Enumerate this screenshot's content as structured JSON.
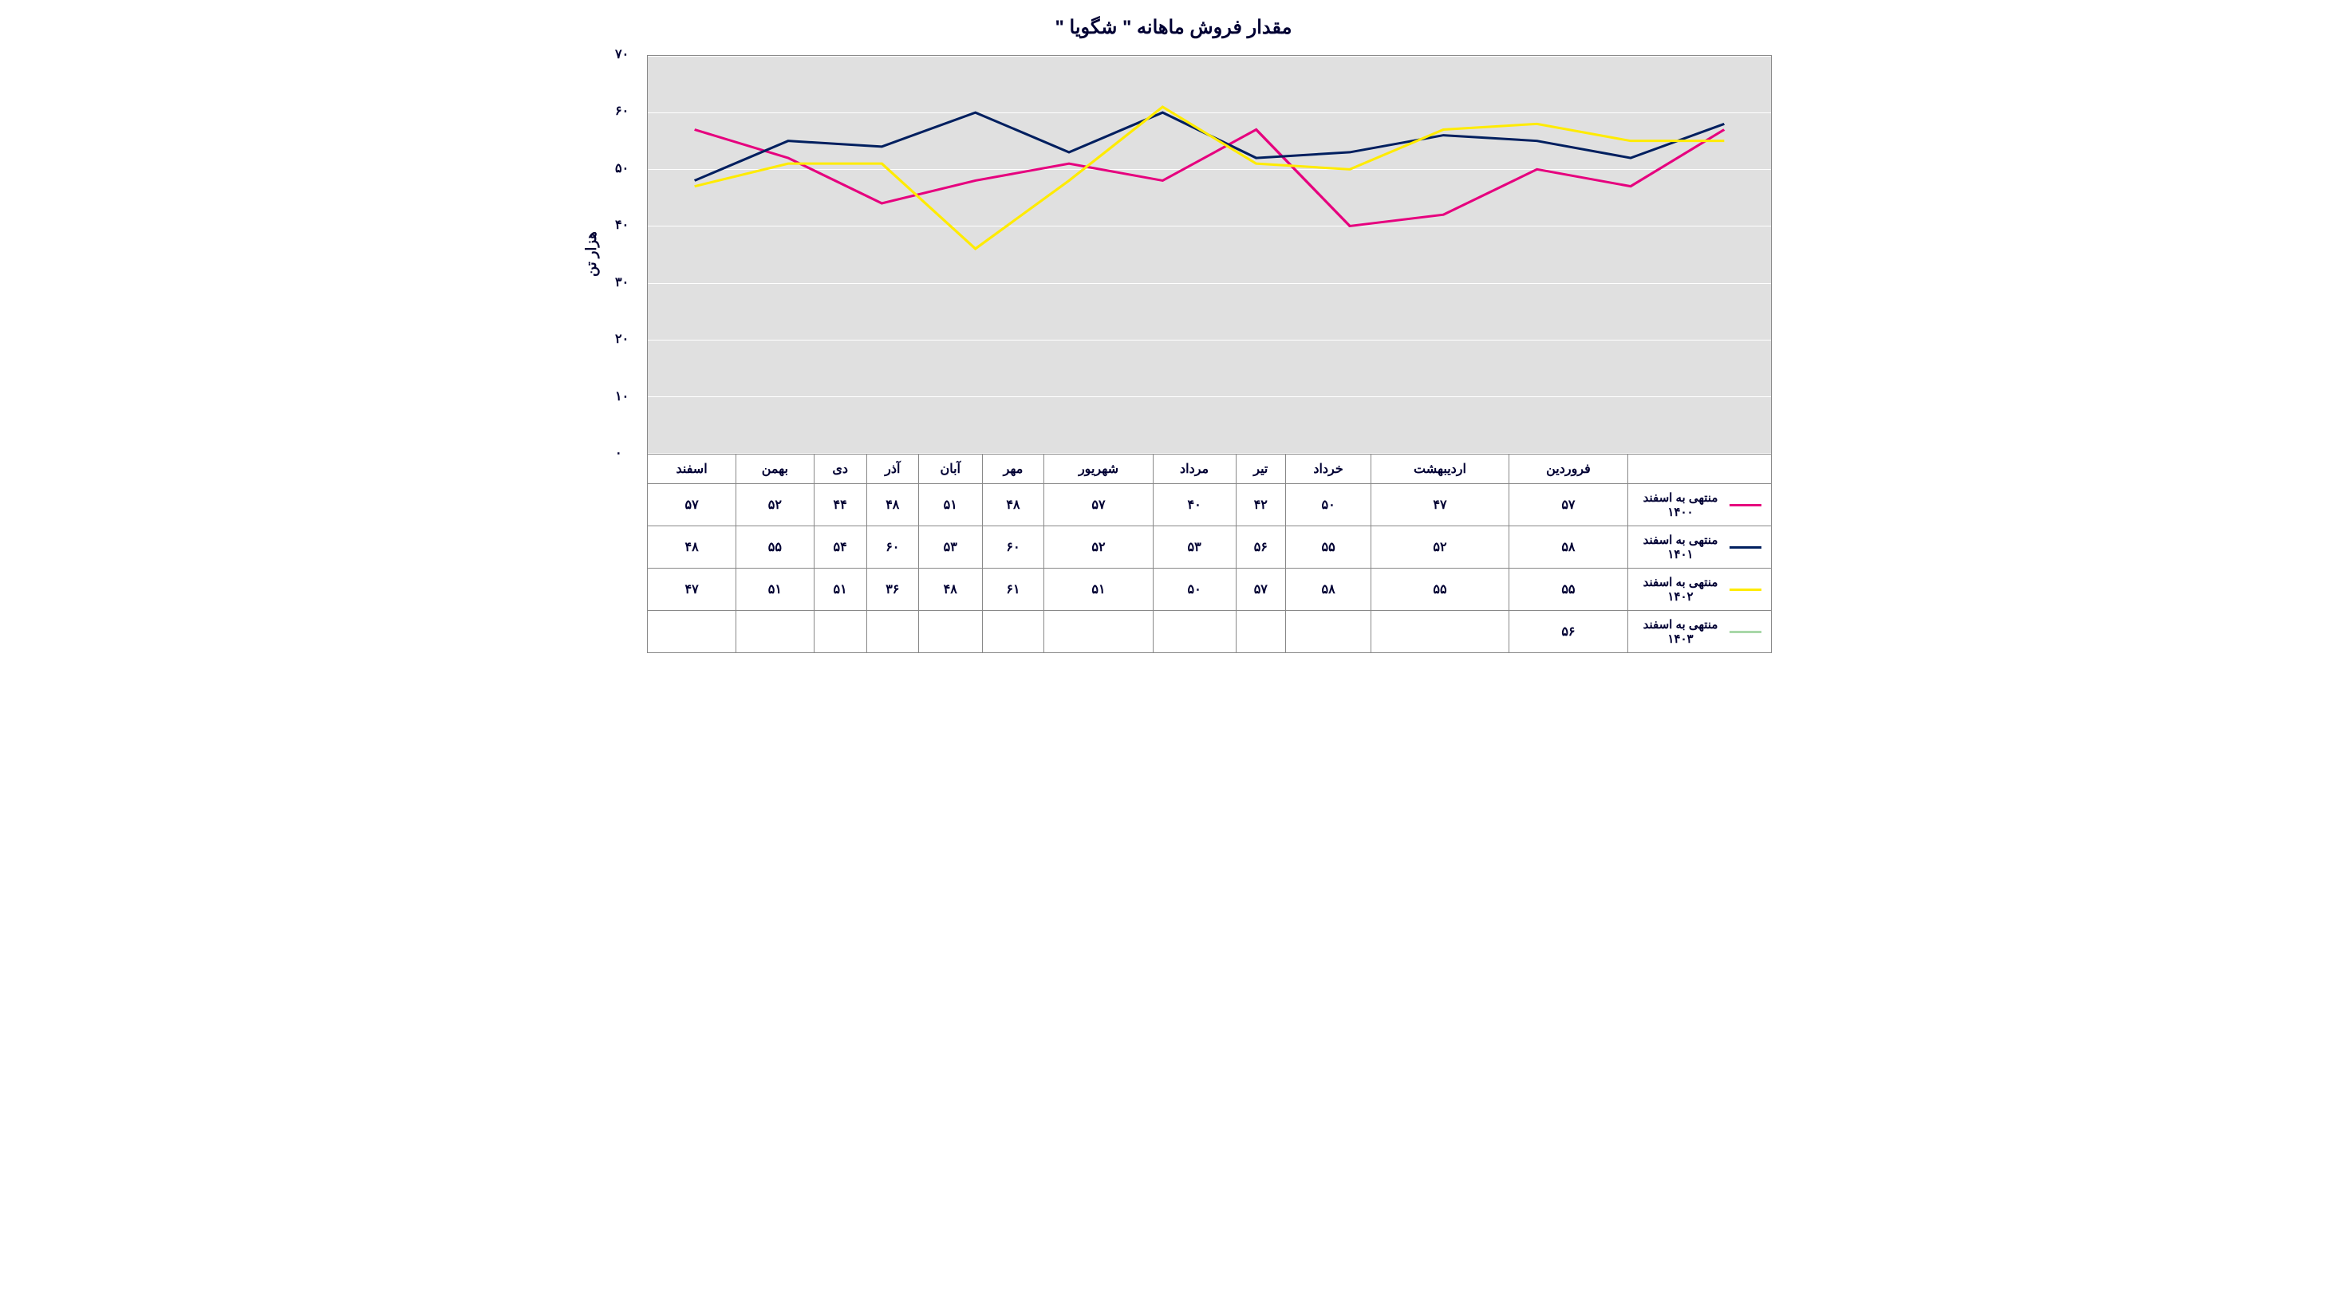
{
  "chart": {
    "title": "مقدار فروش ماهانه \" شگویا  \"",
    "title_fontsize": 24,
    "ylabel": "هزار تن",
    "ylabel_fontsize": 18,
    "type": "line",
    "background_color": "#e0e0e0",
    "grid_color": "#ffffff",
    "border_color": "#888888",
    "text_color": "#000033",
    "ylim": [
      0,
      70
    ],
    "ytick_step": 10,
    "yticks": [
      "۷۰",
      "۶۰",
      "۵۰",
      "۴۰",
      "۳۰",
      "۲۰",
      "۱۰",
      "۰"
    ],
    "ytick_values": [
      70,
      60,
      50,
      40,
      30,
      20,
      10,
      0
    ],
    "line_width": 3,
    "categories": [
      "فروردین",
      "اردیبهشت",
      "خرداد",
      "تیر",
      "مرداد",
      "شهریور",
      "مهر",
      "آبان",
      "آذر",
      "دی",
      "بهمن",
      "اسفند"
    ],
    "series": [
      {
        "label": "منتهی به اسفند ۱۴۰۰",
        "color": "#e6007e",
        "values": [
          57,
          47,
          50,
          42,
          40,
          57,
          48,
          51,
          48,
          44,
          52,
          57
        ],
        "display_values": [
          "۵۷",
          "۴۷",
          "۵۰",
          "۴۲",
          "۴۰",
          "۵۷",
          "۴۸",
          "۵۱",
          "۴۸",
          "۴۴",
          "۵۲",
          "۵۷"
        ]
      },
      {
        "label": "منتهی به اسفند ۱۴۰۱",
        "color": "#001f5f",
        "values": [
          58,
          52,
          55,
          56,
          53,
          52,
          60,
          53,
          60,
          54,
          55,
          48
        ],
        "display_values": [
          "۵۸",
          "۵۲",
          "۵۵",
          "۵۶",
          "۵۳",
          "۵۲",
          "۶۰",
          "۵۳",
          "۶۰",
          "۵۴",
          "۵۵",
          "۴۸"
        ]
      },
      {
        "label": "منتهی به اسفند ۱۴۰۲",
        "color": "#ffeb00",
        "values": [
          55,
          55,
          58,
          57,
          50,
          51,
          61,
          48,
          36,
          51,
          51,
          47
        ],
        "display_values": [
          "۵۵",
          "۵۵",
          "۵۸",
          "۵۷",
          "۵۰",
          "۵۱",
          "۶۱",
          "۴۸",
          "۳۶",
          "۵۱",
          "۵۱",
          "۴۷"
        ]
      },
      {
        "label": "منتهی به اسفند ۱۴۰۳",
        "color": "#a8d8a8",
        "values": [
          56
        ],
        "display_values": [
          "۵۶",
          "",
          "",
          "",
          "",
          "",
          "",
          "",
          "",
          "",
          "",
          ""
        ]
      }
    ]
  }
}
